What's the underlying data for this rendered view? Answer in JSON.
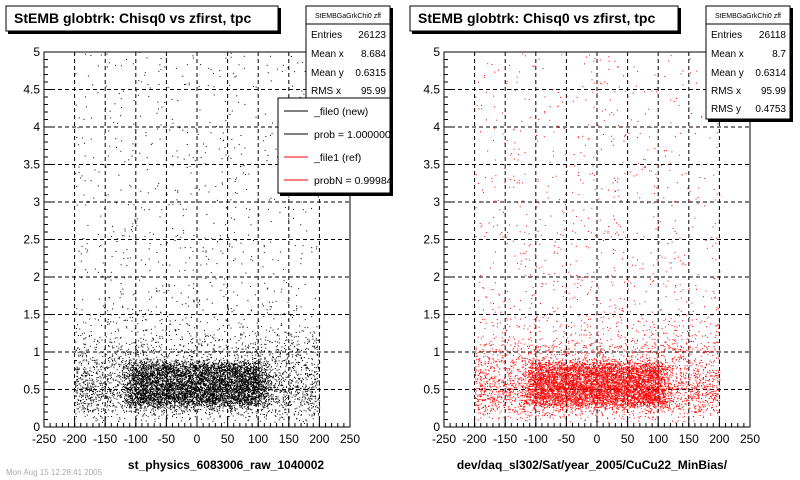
{
  "chart_data": [
    {
      "type": "scatter",
      "title": "StEMB globtrk: Chisq0 vs zfirst, tpc",
      "xlabel": "st_physics_6083006_raw_1040002",
      "ylabel": "",
      "xlim": [
        -250,
        250
      ],
      "ylim": [
        0,
        5
      ],
      "xticks": [
        "-250",
        "-200",
        "-150",
        "-100",
        "-50",
        "0",
        "50",
        "100",
        "150",
        "200",
        "250"
      ],
      "yticks": [
        "0",
        "0.5",
        "1",
        "1.5",
        "2",
        "2.5",
        "3",
        "3.5",
        "4",
        "4.5",
        "5"
      ],
      "grid": true,
      "marker_color": "#000000",
      "stats_box": {
        "header": "StEMBGaGrkChi0 zff",
        "rows": [
          {
            "label": "Entries",
            "value": "26123"
          },
          {
            "label": "Mean x",
            "value": "8.684"
          },
          {
            "label": "Mean y",
            "value": "0.6315"
          },
          {
            "label": "RMS x",
            "value": "95.99"
          }
        ]
      },
      "legend": {
        "placement": "top-right",
        "entries": [
          {
            "label": "_file0 (new)",
            "color": "#000000"
          },
          {
            "label": "prob = 1.000000",
            "color": "#000000"
          },
          {
            "label": "_file1 (ref)",
            "color": "#ff0000"
          },
          {
            "label": "probN = 0.99984",
            "color": "#ff0000"
          }
        ]
      },
      "distribution": {
        "x_range": [
          -200,
          200
        ],
        "core_x_range": [
          -110,
          110
        ],
        "core_y_range": [
          0.3,
          0.85
        ],
        "mean_x": 8.684,
        "mean_y": 0.6315,
        "rms_x": 95.99,
        "entries": 26123
      }
    },
    {
      "type": "scatter",
      "title": "StEMB globtrk: Chisq0 vs zfirst, tpc",
      "xlabel": "dev/daq_sl302/Sat/year_2005/CuCu22_MinBias/",
      "ylabel": "",
      "xlim": [
        -250,
        250
      ],
      "ylim": [
        0,
        5
      ],
      "xticks": [
        "-250",
        "-200",
        "-150",
        "-100",
        "-50",
        "0",
        "50",
        "100",
        "150",
        "200",
        "250"
      ],
      "yticks": [
        "0",
        "0.5",
        "1",
        "1.5",
        "2",
        "2.5",
        "3",
        "3.5",
        "4",
        "4.5",
        "5"
      ],
      "grid": true,
      "marker_color": "#ff0000",
      "stats_box": {
        "header": "StEMBGaGrkChi0 zff",
        "rows": [
          {
            "label": "Entries",
            "value": "26118"
          },
          {
            "label": "Mean x",
            "value": "8.7"
          },
          {
            "label": "Mean y",
            "value": "0.6314"
          },
          {
            "label": "RMS x",
            "value": "95.99"
          },
          {
            "label": "RMS y",
            "value": "0.4753"
          }
        ]
      },
      "distribution": {
        "x_range": [
          -200,
          200
        ],
        "core_x_range": [
          -110,
          110
        ],
        "core_y_range": [
          0.3,
          0.85
        ],
        "mean_x": 8.7,
        "mean_y": 0.6314,
        "rms_x": 95.99,
        "rms_y": 0.4753,
        "entries": 26118
      }
    }
  ],
  "footer_text": "Mon Aug 15 12:28:41 2005"
}
